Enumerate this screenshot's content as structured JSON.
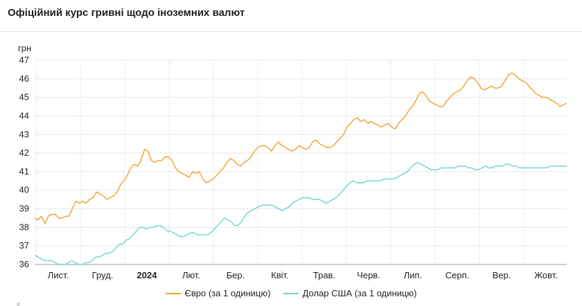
{
  "title": "Офіційний курс гривні щодо іноземних валют",
  "chart_data": {
    "type": "line",
    "ylabel": "грн",
    "ylim": [
      36,
      47
    ],
    "yticks": [
      "36",
      "37",
      "38",
      "39",
      "40",
      "41",
      "42",
      "43",
      "44",
      "45",
      "46",
      "47"
    ],
    "xaxis": {
      "labels": [
        "Лист.",
        "Груд.",
        "2024",
        "Лют.",
        "Бер.",
        "Квіт.",
        "Трав.",
        "Черв.",
        "Лип.",
        "Серп.",
        "Вер.",
        "Жовт."
      ],
      "bold": [
        false,
        false,
        true,
        false,
        false,
        false,
        false,
        false,
        false,
        false,
        false,
        false
      ]
    },
    "grid": true,
    "legend_position": "bottom",
    "series": [
      {
        "name": "Євро (за 1 одиницю)",
        "color": "#f0a12b",
        "values": [
          38.5,
          38.4,
          38.6,
          38.2,
          38.6,
          38.7,
          38.7,
          38.5,
          38.5,
          38.6,
          38.6,
          39.0,
          39.4,
          39.3,
          39.4,
          39.3,
          39.5,
          39.6,
          39.9,
          39.8,
          39.7,
          39.5,
          39.6,
          39.7,
          39.9,
          40.3,
          40.5,
          40.8,
          41.2,
          41.4,
          41.3,
          41.6,
          42.2,
          42.1,
          41.6,
          41.5,
          41.6,
          41.6,
          41.8,
          41.8,
          41.6,
          41.2,
          41.0,
          40.9,
          40.8,
          40.7,
          41.0,
          40.9,
          41.0,
          40.6,
          40.4,
          40.5,
          40.6,
          40.8,
          41.0,
          41.2,
          41.5,
          41.7,
          41.6,
          41.4,
          41.3,
          41.5,
          41.6,
          41.8,
          42.1,
          42.3,
          42.4,
          42.4,
          42.3,
          42.1,
          42.4,
          42.6,
          42.4,
          42.3,
          42.2,
          42.1,
          42.2,
          42.4,
          42.3,
          42.2,
          42.3,
          42.6,
          42.7,
          42.5,
          42.4,
          42.3,
          42.3,
          42.4,
          42.6,
          42.8,
          43.0,
          43.4,
          43.6,
          43.8,
          43.9,
          43.7,
          43.8,
          43.6,
          43.7,
          43.6,
          43.5,
          43.4,
          43.5,
          43.6,
          43.4,
          43.3,
          43.6,
          43.8,
          44.0,
          44.3,
          44.5,
          44.8,
          45.2,
          45.3,
          45.1,
          44.8,
          44.7,
          44.6,
          44.5,
          44.5,
          44.8,
          45.0,
          45.2,
          45.3,
          45.4,
          45.6,
          45.9,
          46.1,
          46.0,
          45.8,
          45.5,
          45.4,
          45.5,
          45.6,
          45.5,
          45.5,
          45.6,
          45.9,
          46.2,
          46.3,
          46.2,
          46.0,
          45.9,
          45.8,
          45.6,
          45.4,
          45.2,
          45.1,
          45.0,
          45.0,
          44.9,
          44.8,
          44.7,
          44.5,
          44.6,
          44.7
        ]
      },
      {
        "name": "Долар США (за 1 одиницю)",
        "color": "#6fd2cf",
        "values": [
          36.5,
          36.4,
          36.3,
          36.2,
          36.2,
          36.2,
          36.1,
          36.0,
          36.0,
          36.0,
          36.1,
          36.2,
          36.1,
          36.0,
          36.0,
          36.1,
          36.1,
          36.2,
          36.4,
          36.4,
          36.5,
          36.6,
          36.6,
          36.7,
          36.9,
          37.1,
          37.1,
          37.3,
          37.4,
          37.6,
          37.8,
          38.0,
          38.0,
          37.9,
          38.0,
          38.0,
          38.1,
          38.1,
          38.0,
          37.8,
          37.8,
          37.7,
          37.6,
          37.5,
          37.5,
          37.6,
          37.7,
          37.7,
          37.6,
          37.6,
          37.6,
          37.6,
          37.7,
          37.9,
          38.1,
          38.3,
          38.5,
          38.4,
          38.3,
          38.1,
          38.1,
          38.3,
          38.6,
          38.8,
          38.9,
          39.0,
          39.1,
          39.2,
          39.2,
          39.2,
          39.2,
          39.1,
          39.0,
          38.9,
          39.0,
          39.1,
          39.3,
          39.4,
          39.5,
          39.6,
          39.6,
          39.6,
          39.5,
          39.5,
          39.5,
          39.4,
          39.3,
          39.4,
          39.5,
          39.6,
          39.8,
          40.0,
          40.2,
          40.4,
          40.5,
          40.4,
          40.4,
          40.4,
          40.5,
          40.5,
          40.5,
          40.5,
          40.5,
          40.6,
          40.6,
          40.6,
          40.6,
          40.7,
          40.8,
          40.9,
          41.0,
          41.2,
          41.4,
          41.5,
          41.4,
          41.3,
          41.2,
          41.1,
          41.1,
          41.1,
          41.2,
          41.2,
          41.2,
          41.2,
          41.2,
          41.3,
          41.3,
          41.3,
          41.2,
          41.2,
          41.1,
          41.1,
          41.2,
          41.3,
          41.2,
          41.2,
          41.3,
          41.3,
          41.3,
          41.4,
          41.4,
          41.3,
          41.3,
          41.2,
          41.2,
          41.2,
          41.2,
          41.2,
          41.2,
          41.2,
          41.2,
          41.2,
          41.3,
          41.3,
          41.3,
          41.3,
          41.3,
          41.3
        ]
      }
    ]
  }
}
